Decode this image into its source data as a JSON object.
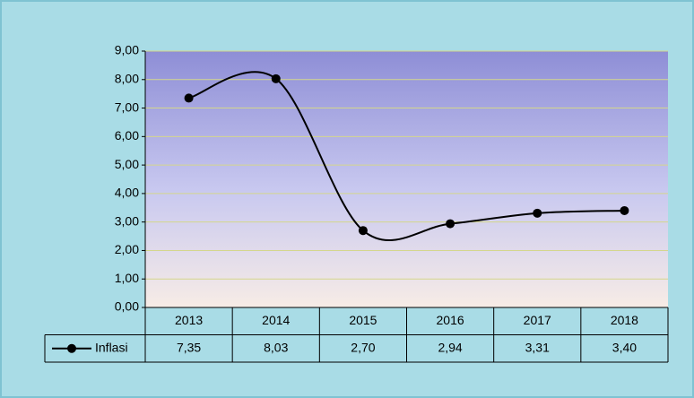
{
  "chart_data": {
    "type": "line",
    "categories": [
      "2013",
      "2014",
      "2015",
      "2016",
      "2017",
      "2018"
    ],
    "series": [
      {
        "name": "Inflasi",
        "color": "#000000",
        "values": [
          7.35,
          8.03,
          2.7,
          2.94,
          3.31,
          3.4
        ],
        "value_labels": [
          "7,35",
          "8,03",
          "2,70",
          "2,94",
          "3,31",
          "3,40"
        ]
      }
    ],
    "ylim": [
      0,
      9
    ],
    "yticks": [
      {
        "value": 0,
        "label": "0,00"
      },
      {
        "value": 1,
        "label": "1,00"
      },
      {
        "value": 2,
        "label": "2,00"
      },
      {
        "value": 3,
        "label": "3,00"
      },
      {
        "value": 4,
        "label": "4,00"
      },
      {
        "value": 5,
        "label": "5,00"
      },
      {
        "value": 6,
        "label": "6,00"
      },
      {
        "value": 7,
        "label": "7,00"
      },
      {
        "value": 8,
        "label": "8,00"
      },
      {
        "value": 9,
        "label": "9,00"
      }
    ],
    "grid": true,
    "smooth": true,
    "data_table": true
  }
}
